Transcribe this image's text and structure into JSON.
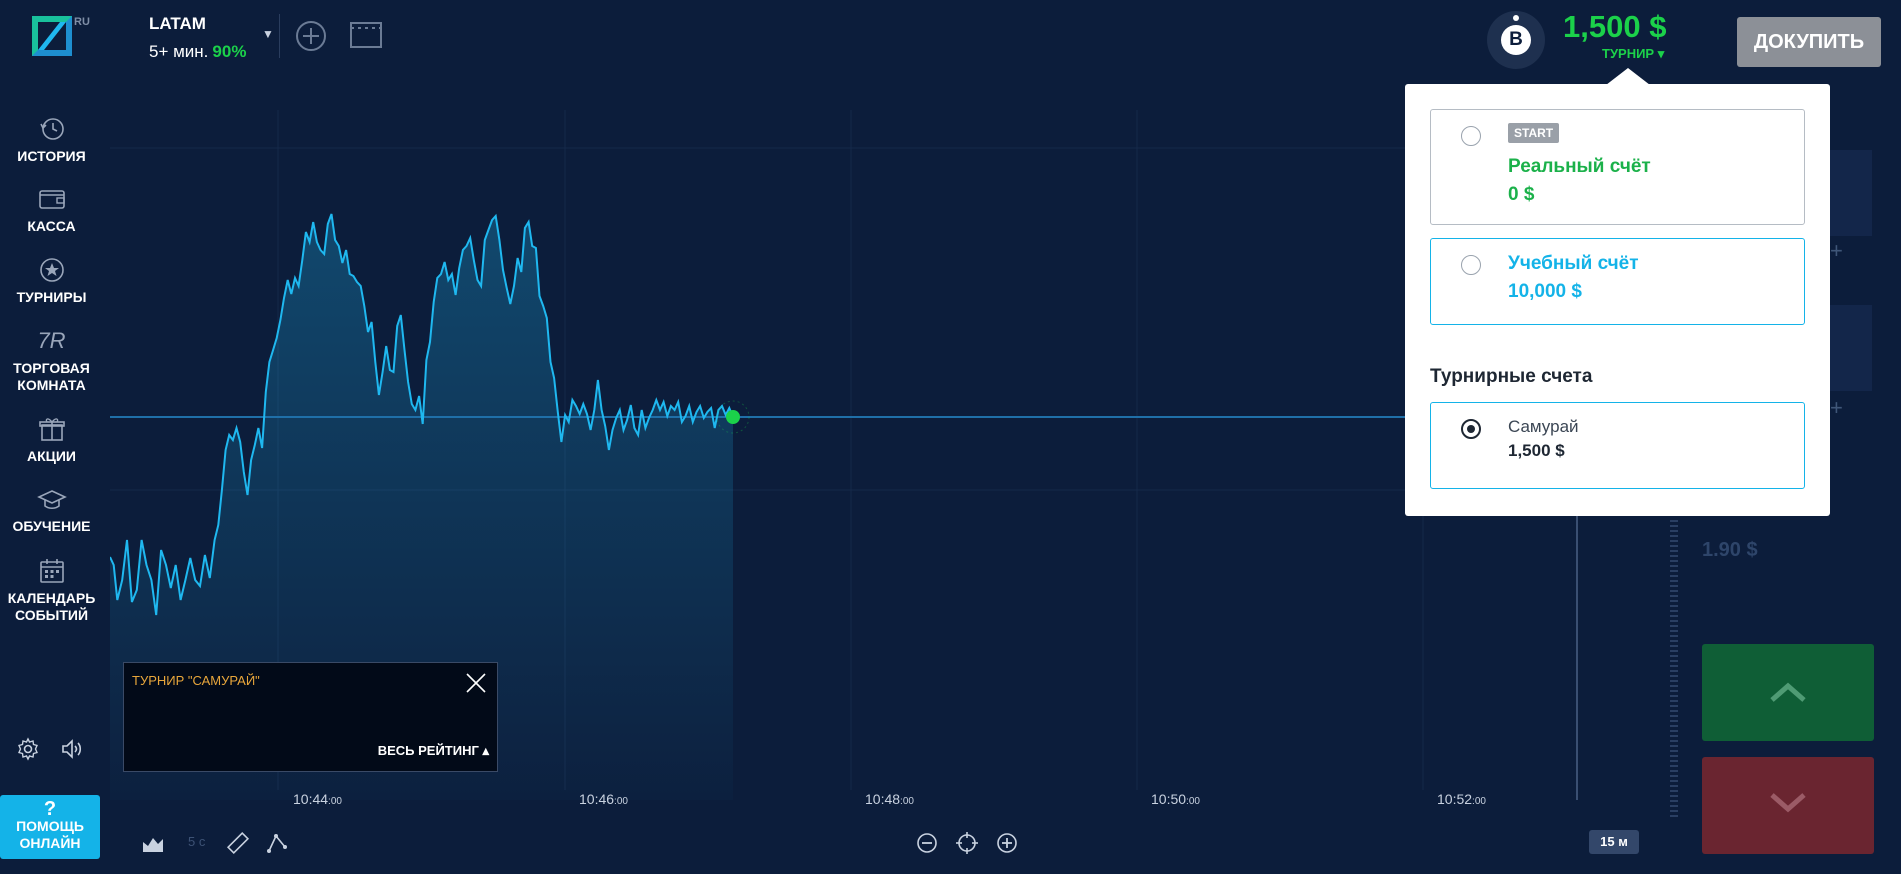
{
  "header": {
    "logo_text": "RU",
    "asset": {
      "name": "LATAM",
      "duration": "5+ мин.",
      "payout": "90%"
    },
    "balance": "1,500 $",
    "balance_type": "ТУРНИР ▾",
    "avatar_letter": "B",
    "topup_label": "ДОКУПИТЬ"
  },
  "sidebar": {
    "items": [
      {
        "label": "ИСТОРИЯ",
        "icon": "history-icon"
      },
      {
        "label": "КАССА",
        "icon": "wallet-icon"
      },
      {
        "label": "ТУРНИРЫ",
        "icon": "star-icon"
      },
      {
        "label": "ТОРГОВАЯ КОМНАТА",
        "icon": "trading-room-icon",
        "icon_text": "7R"
      },
      {
        "label": "АКЦИИ",
        "icon": "gift-icon"
      },
      {
        "label": "ОБУЧЕНИЕ",
        "icon": "graduation-cap-icon"
      },
      {
        "label": "КАЛЕНДАРЬ СОБЫТИЙ",
        "icon": "calendar-icon"
      }
    ],
    "help": {
      "mark": "?",
      "line1": "ПОМОЩЬ",
      "line2": "ОНЛАЙН"
    }
  },
  "chart": {
    "time_labels": [
      {
        "hm": "10:44",
        "s": ":00"
      },
      {
        "hm": "10:46",
        "s": ":00"
      },
      {
        "hm": "10:48",
        "s": ":00"
      },
      {
        "hm": "10:50",
        "s": ":00"
      },
      {
        "hm": "10:52",
        "s": ":00"
      }
    ],
    "line_color": "#1fb8f0",
    "current_point_color": "#1bd14a"
  },
  "toolbar": {
    "interval": "5 с",
    "timeframe": "15 м"
  },
  "tournament_widget": {
    "title": "ТУРНИР \"САМУРАЙ\"",
    "rating_label": "ВЕСЬ РЕЙТИНГ ▴"
  },
  "account_dropdown": {
    "real": {
      "badge": "START",
      "name": "Реальный счёт",
      "value": "0 $",
      "color": "#1bb14a"
    },
    "demo": {
      "name": "Учебный счёт",
      "value": "10,000 $",
      "color": "#14b3e8"
    },
    "section_title": "Турнирные счета",
    "tournament": {
      "name": "Самурай",
      "value": "1,500 $"
    }
  },
  "right_panel": {
    "faded_value": "1.90 $"
  }
}
